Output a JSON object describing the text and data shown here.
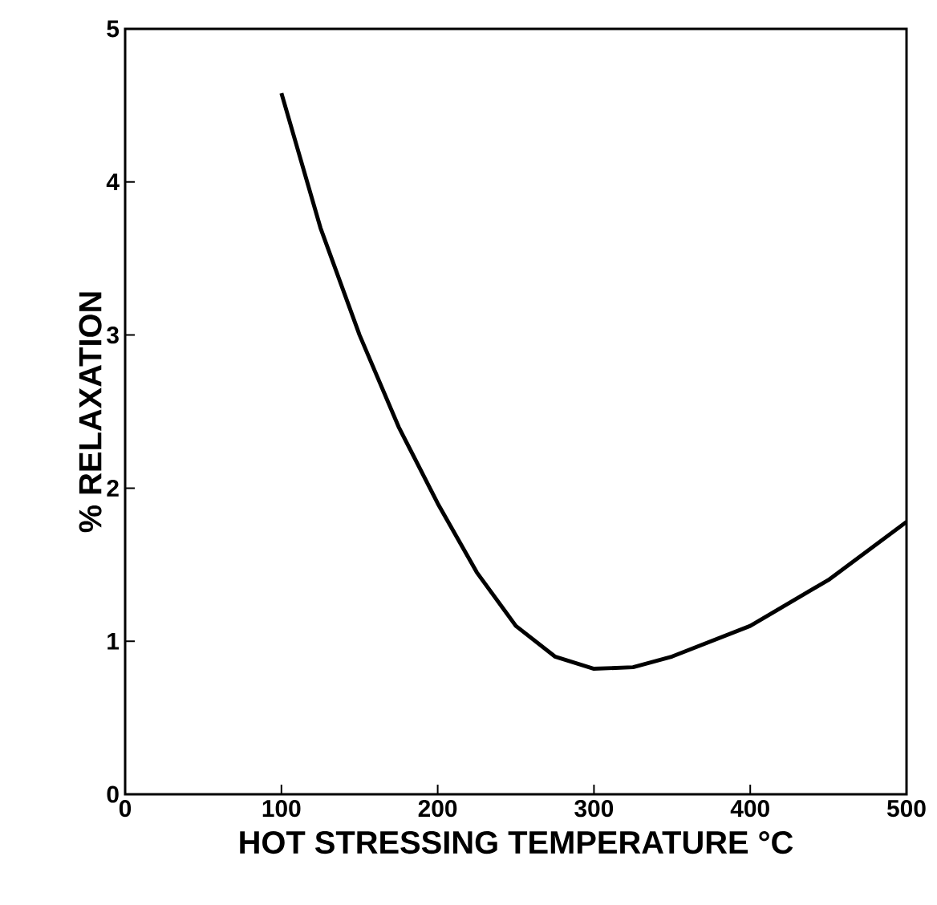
{
  "chart_data": {
    "type": "line",
    "xlabel": "HOT STRESSING TEMPERATURE °C",
    "ylabel": "% RELAXATION",
    "x": [
      100,
      125,
      150,
      175,
      200,
      225,
      250,
      275,
      300,
      325,
      350,
      400,
      450,
      500
    ],
    "values": [
      4.58,
      3.7,
      3.0,
      2.4,
      1.9,
      1.45,
      1.1,
      0.9,
      0.82,
      0.83,
      0.9,
      1.1,
      1.4,
      1.78
    ],
    "color": "#000000",
    "xlim": [
      0,
      500
    ],
    "ylim": [
      0,
      5
    ],
    "xticks": [
      0,
      100,
      200,
      300,
      400,
      500
    ],
    "yticks": [
      0,
      1,
      2,
      3,
      4,
      5
    ],
    "grid": false
  }
}
